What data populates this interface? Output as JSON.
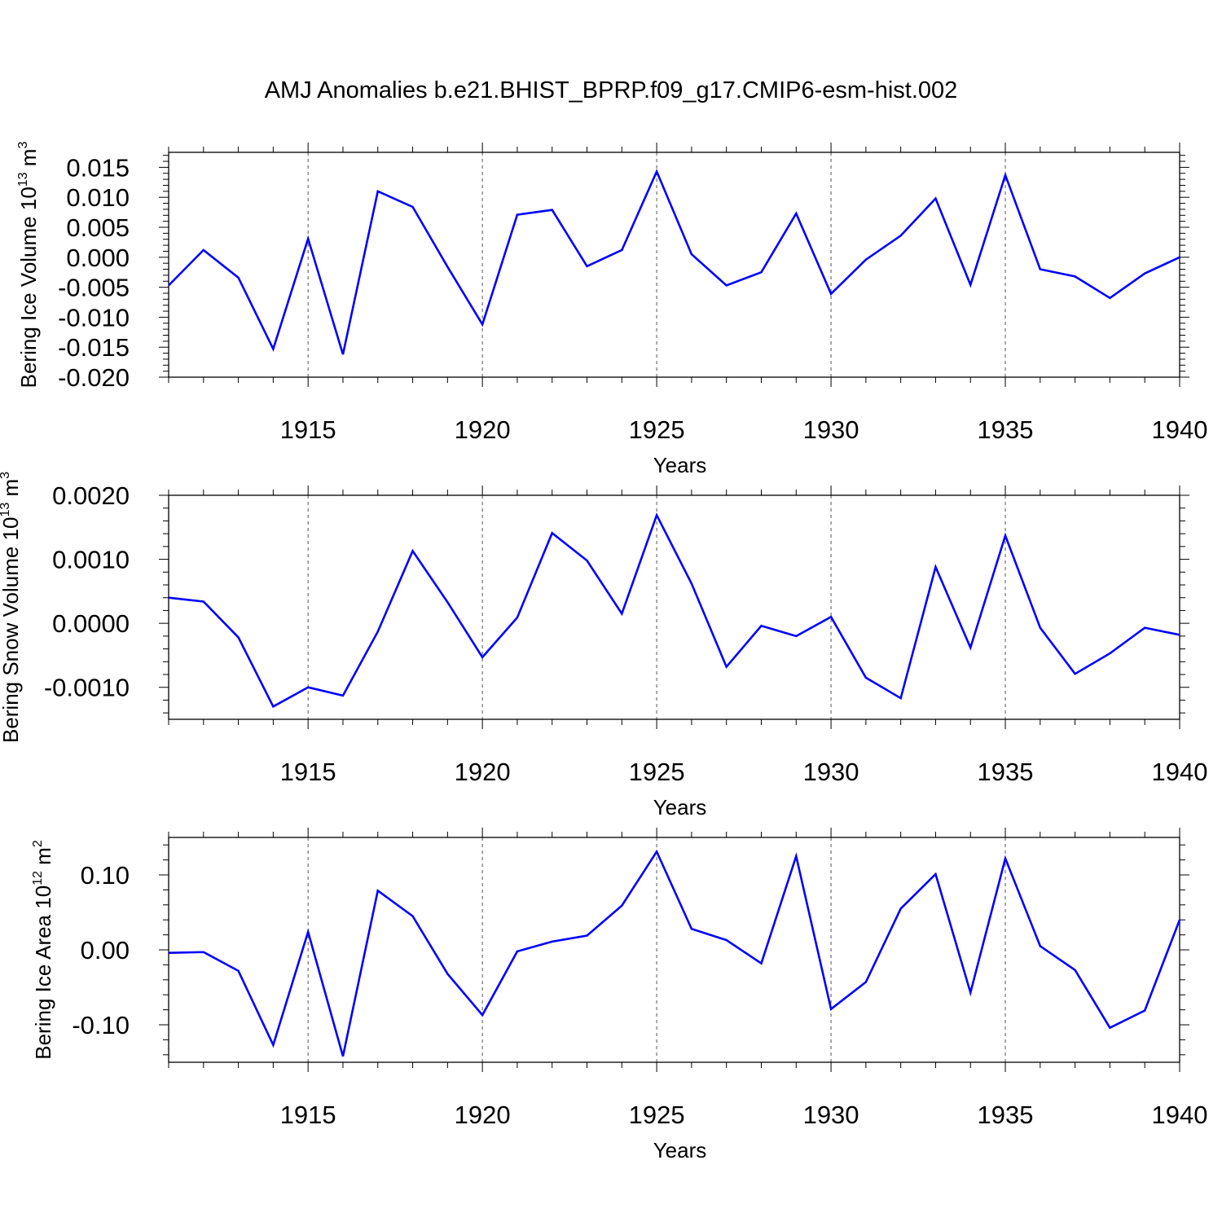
{
  "title": "AMJ Anomalies b.e21.BHIST_BPRP.f09_g17.CMIP6-esm-hist.002",
  "colors": {
    "series": "#0000ff",
    "axis": "#000000",
    "grid": "#555555"
  },
  "chart_data": [
    {
      "type": "line",
      "ylabel": "Bering Ice Volume 10^13 m^3",
      "ylabel_parts": {
        "text": "Bering Ice Volume 10",
        "exp1": "13",
        "mid": " m",
        "exp2": "3"
      },
      "xlabel": "Years",
      "xlim": [
        1911,
        1940
      ],
      "ylim": [
        -0.02,
        0.0175
      ],
      "xticks": [
        1915,
        1920,
        1925,
        1930,
        1935,
        1940
      ],
      "yticks": [
        -0.02,
        -0.015,
        -0.01,
        -0.005,
        0.0,
        0.005,
        0.01,
        0.015
      ],
      "ytick_labels": [
        "-0.020",
        "-0.015",
        "-0.010",
        "-0.005",
        "0.000",
        "0.005",
        "0.010",
        "0.015"
      ],
      "grid": "vertical dashed at major x ticks",
      "x": [
        1911,
        1912,
        1913,
        1914,
        1915,
        1916,
        1917,
        1918,
        1919,
        1920,
        1921,
        1922,
        1923,
        1924,
        1925,
        1926,
        1927,
        1928,
        1929,
        1930,
        1931,
        1932,
        1933,
        1934,
        1935,
        1936,
        1937,
        1938,
        1939,
        1940
      ],
      "values": [
        -0.0047,
        0.0012,
        -0.0034,
        -0.0153,
        0.0031,
        -0.0162,
        0.011,
        0.0084,
        -0.0016,
        -0.0112,
        0.0071,
        0.0079,
        -0.0015,
        0.0012,
        0.0143,
        0.0005,
        -0.0047,
        -0.0025,
        0.0073,
        -0.0061,
        -0.0004,
        0.0036,
        0.0098,
        -0.0046,
        0.0137,
        -0.002,
        -0.0032,
        -0.0068,
        -0.0027,
        0.0
      ]
    },
    {
      "type": "line",
      "ylabel": "Bering Snow Volume 10^13 m^3",
      "ylabel_parts": {
        "text": "Bering Snow Volume 10",
        "exp1": "13",
        "mid": " m",
        "exp2": "3"
      },
      "xlabel": "Years",
      "xlim": [
        1911,
        1940
      ],
      "ylim": [
        -0.0015,
        0.002
      ],
      "xticks": [
        1915,
        1920,
        1925,
        1930,
        1935,
        1940
      ],
      "yticks": [
        -0.001,
        0.0,
        0.001,
        0.002
      ],
      "ytick_labels": [
        "-0.0010",
        "0.0000",
        "0.0010",
        "0.0020"
      ],
      "grid": "vertical dashed at major x ticks",
      "x": [
        1911,
        1912,
        1913,
        1914,
        1915,
        1916,
        1917,
        1918,
        1919,
        1920,
        1921,
        1922,
        1923,
        1924,
        1925,
        1926,
        1927,
        1928,
        1929,
        1930,
        1931,
        1932,
        1933,
        1934,
        1935,
        1936,
        1937,
        1938,
        1939,
        1940
      ],
      "values": [
        0.0004,
        0.00034,
        -0.00022,
        -0.0013,
        -0.001,
        -0.00113,
        -0.00013,
        0.00113,
        0.00033,
        -0.00053,
        9e-05,
        0.00141,
        0.00098,
        0.00015,
        0.00169,
        0.00062,
        -0.00068,
        -4e-05,
        -0.0002,
        0.0001,
        -0.00085,
        -0.00117,
        0.00088,
        -0.00038,
        0.00137,
        -7e-05,
        -0.00079,
        -0.00047,
        -7e-05,
        -0.00018
      ]
    },
    {
      "type": "line",
      "ylabel": "Bering Ice Area 10^12 m^2",
      "ylabel_parts": {
        "text": "Bering Ice Area 10",
        "exp1": "12",
        "mid": " m",
        "exp2": "2"
      },
      "xlabel": "Years",
      "xlim": [
        1911,
        1940
      ],
      "ylim": [
        -0.15,
        0.15
      ],
      "xticks": [
        1915,
        1920,
        1925,
        1930,
        1935,
        1940
      ],
      "yticks": [
        -0.1,
        0.0,
        0.1
      ],
      "ytick_labels": [
        "-0.10",
        "0.00",
        "0.10"
      ],
      "grid": "vertical dashed at major x ticks",
      "x": [
        1911,
        1912,
        1913,
        1914,
        1915,
        1916,
        1917,
        1918,
        1919,
        1920,
        1921,
        1922,
        1923,
        1924,
        1925,
        1926,
        1927,
        1928,
        1929,
        1930,
        1931,
        1932,
        1933,
        1934,
        1935,
        1936,
        1937,
        1938,
        1939,
        1940
      ],
      "values": [
        -0.004,
        -0.003,
        -0.028,
        -0.127,
        0.024,
        -0.142,
        0.079,
        0.045,
        -0.032,
        -0.087,
        -0.002,
        0.011,
        0.019,
        0.059,
        0.131,
        0.028,
        0.013,
        -0.018,
        0.125,
        -0.079,
        -0.043,
        0.055,
        0.101,
        -0.057,
        0.122,
        0.005,
        -0.027,
        -0.104,
        -0.081,
        0.04
      ]
    }
  ]
}
